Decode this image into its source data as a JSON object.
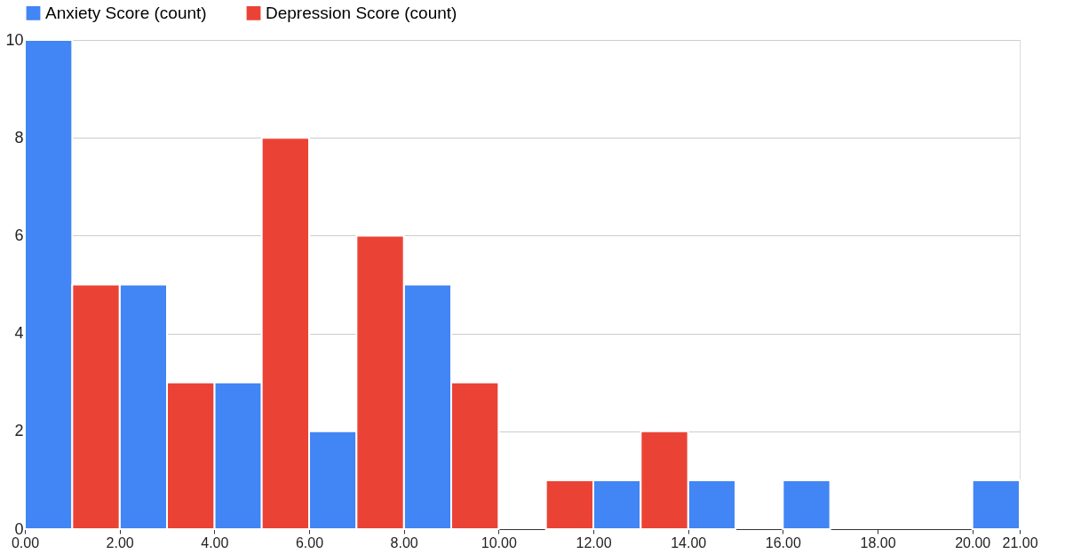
{
  "chart_data": {
    "type": "histogram",
    "bins": [
      0,
      1,
      2,
      3,
      4,
      5,
      6,
      7,
      8,
      9,
      10,
      11,
      12,
      13,
      14,
      15,
      16,
      17,
      18,
      19,
      20,
      21
    ],
    "series": [
      {
        "name": "Anxiety Score (count)",
        "color": "#4285f4",
        "values": [
          10,
          null,
          5,
          null,
          3,
          null,
          2,
          null,
          5,
          null,
          null,
          null,
          1,
          null,
          1,
          null,
          1,
          null,
          null,
          null,
          1
        ]
      },
      {
        "name": "Depression Score (count)",
        "color": "#ea4335",
        "values": [
          null,
          5,
          null,
          3,
          null,
          8,
          null,
          6,
          null,
          3,
          null,
          1,
          null,
          2,
          null,
          null,
          null,
          null,
          null,
          null,
          null
        ]
      }
    ],
    "xlim": [
      0,
      21
    ],
    "xticks": [
      {
        "value": 0,
        "label": "0.00"
      },
      {
        "value": 2,
        "label": "2.00"
      },
      {
        "value": 4,
        "label": "4.00"
      },
      {
        "value": 6,
        "label": "6.00"
      },
      {
        "value": 8,
        "label": "8.00"
      },
      {
        "value": 10,
        "label": "10.00"
      },
      {
        "value": 12,
        "label": "12.00"
      },
      {
        "value": 14,
        "label": "14.00"
      },
      {
        "value": 16,
        "label": "16.00"
      },
      {
        "value": 18,
        "label": "18.00"
      },
      {
        "value": 20,
        "label": "20.00"
      },
      {
        "value": 21,
        "label": "21.00"
      }
    ],
    "ylim": [
      0,
      10
    ],
    "yticks": [
      0,
      2,
      4,
      6,
      8,
      10
    ],
    "grid": "y",
    "legend": "top"
  }
}
